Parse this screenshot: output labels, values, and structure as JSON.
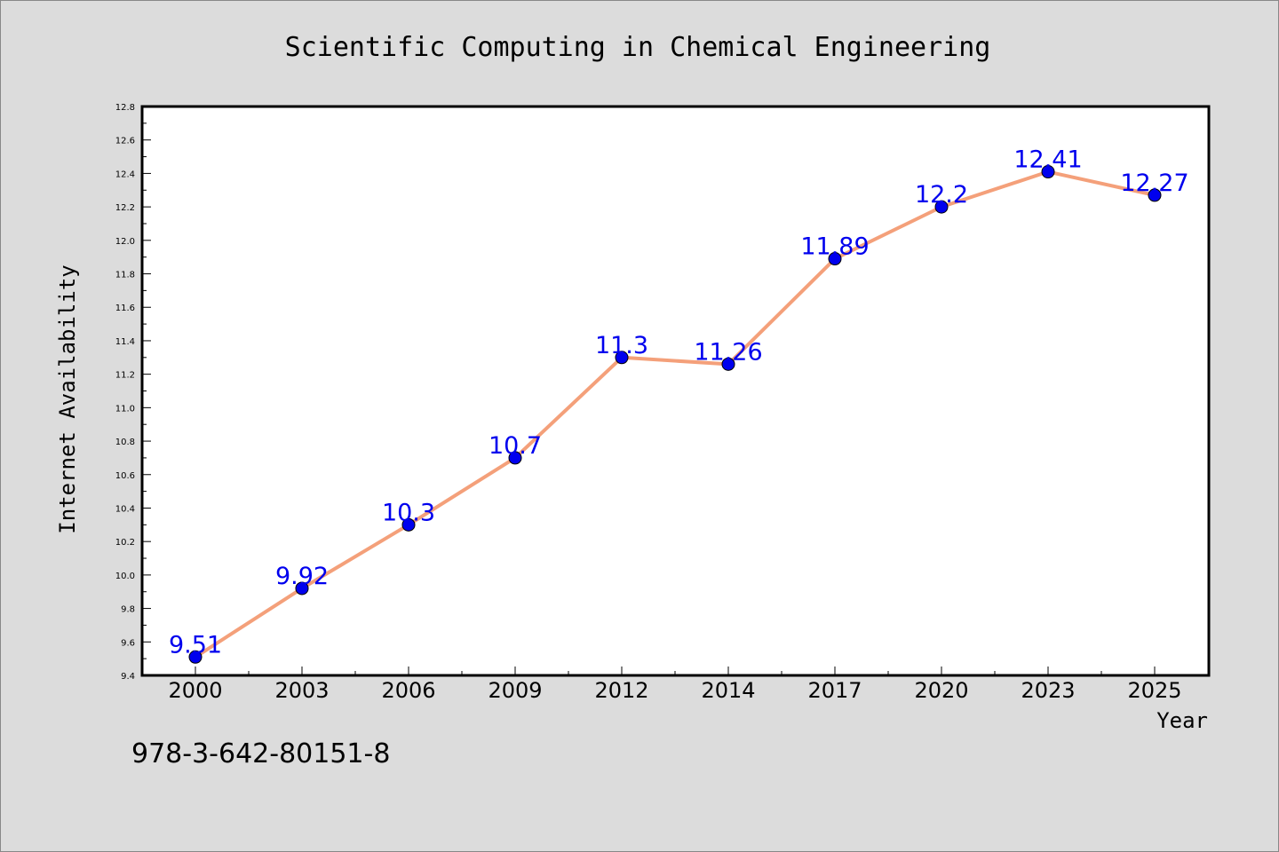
{
  "chart_data": {
    "type": "line",
    "title": "Scientific Computing in Chemical Engineering",
    "xlabel": "Year",
    "ylabel": "Internet Availability",
    "categories": [
      "2000",
      "2003",
      "2006",
      "2009",
      "2012",
      "2014",
      "2017",
      "2020",
      "2023",
      "2025"
    ],
    "series": [
      {
        "values": [
          9.51,
          9.92,
          10.3,
          10.7,
          11.3,
          11.26,
          11.89,
          12.2,
          12.41,
          12.27
        ],
        "labels": [
          "9.51",
          "9.92",
          "10.3",
          "10.7",
          "11.3",
          "11.26",
          "11.89",
          "12.2",
          "12.41",
          "12.27"
        ],
        "line_color": "#f4a07a",
        "marker_color": "#0000ee",
        "label_color": "#0000ee"
      }
    ],
    "ylim": [
      9.4,
      12.8
    ],
    "yticks": [
      "9.4",
      "9.6",
      "9.8",
      "10.0",
      "10.2",
      "10.4",
      "10.6",
      "10.8",
      "11.0",
      "11.2",
      "11.4",
      "11.6",
      "11.8",
      "12.0",
      "12.2",
      "12.4",
      "12.6",
      "12.8"
    ],
    "grid": false,
    "legend": "none"
  },
  "footer": {
    "isbn": "978-3-642-80151-8"
  },
  "colors": {
    "background": "#dcdcdc",
    "plot_area": "#ffffff",
    "axis": "#000000"
  }
}
